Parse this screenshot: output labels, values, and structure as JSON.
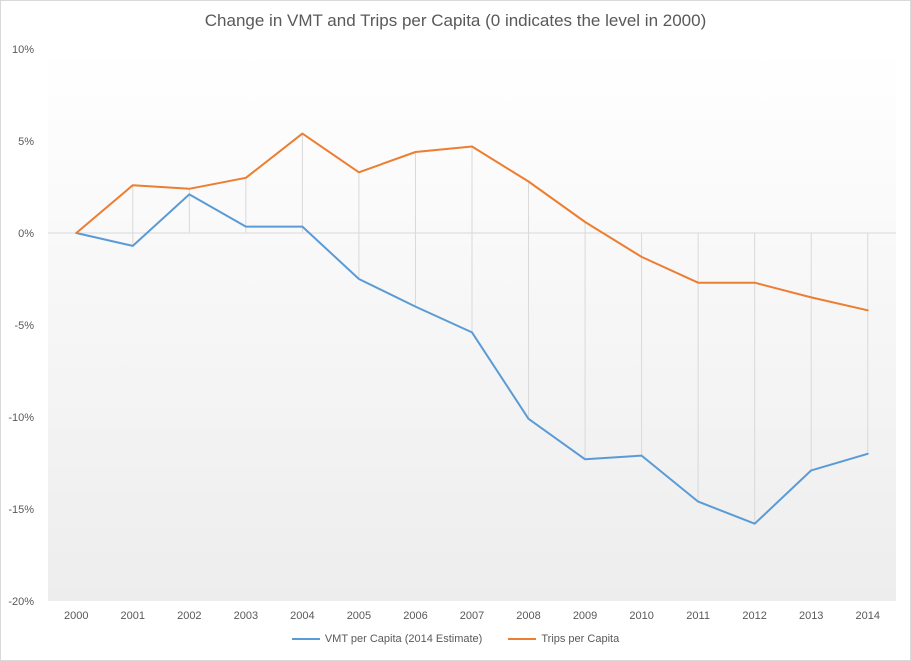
{
  "chart_data": {
    "type": "line",
    "title": "Change in VMT and Trips per Capita (0 indicates the level in 2000)",
    "xlabel": "",
    "ylabel": "",
    "categories": [
      "2000",
      "2001",
      "2002",
      "2003",
      "2004",
      "2005",
      "2006",
      "2007",
      "2008",
      "2009",
      "2010",
      "2011",
      "2012",
      "2013",
      "2014"
    ],
    "y_ticks": [
      10,
      5,
      0,
      -5,
      -10,
      -15,
      -20
    ],
    "y_tick_labels": [
      "10%",
      "5%",
      "0%",
      "-5%",
      "-10%",
      "-15%",
      "-20%"
    ],
    "ylim": [
      -20,
      10
    ],
    "grid": "drop lines from each point to zero",
    "legend_position": "bottom",
    "series": [
      {
        "name": "VMT per Capita (2014 Estimate)",
        "color": "#5b9bd5",
        "values": [
          0,
          -0.7,
          2.1,
          0.35,
          0.35,
          -2.5,
          -4.0,
          -5.4,
          -10.1,
          -12.3,
          -12.1,
          -14.6,
          -15.8,
          -12.9,
          -12.0
        ]
      },
      {
        "name": "Trips per Capita",
        "color": "#ed7d31",
        "values": [
          0,
          2.6,
          2.4,
          3.0,
          5.4,
          3.3,
          4.4,
          4.7,
          2.8,
          0.6,
          -1.3,
          -2.7,
          -2.7,
          -3.5,
          -4.2
        ]
      }
    ]
  }
}
